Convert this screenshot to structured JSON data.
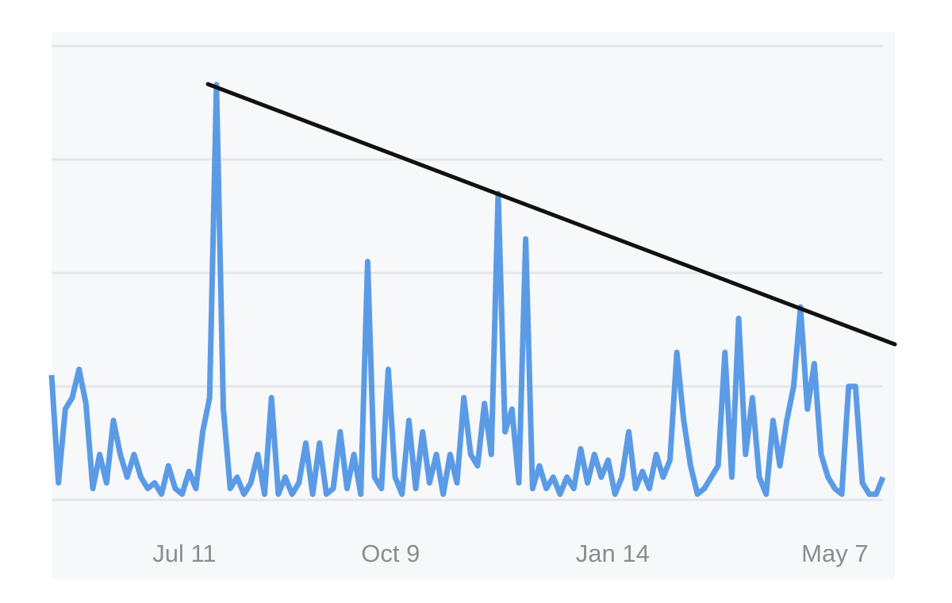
{
  "chart_data": {
    "type": "line",
    "x": [
      0,
      3,
      6,
      9,
      12,
      15,
      18,
      21,
      24,
      27,
      30,
      33,
      36,
      39,
      42,
      45,
      48,
      51,
      54,
      57,
      60,
      63,
      66,
      69,
      72,
      75,
      78,
      81,
      84,
      87,
      90,
      93,
      96,
      99,
      102,
      105,
      108,
      111,
      114,
      117,
      120,
      123,
      126,
      129,
      132,
      135,
      138,
      141,
      144,
      147,
      150,
      153,
      156,
      159,
      162,
      165,
      168,
      171,
      174,
      177,
      180,
      183,
      186,
      189,
      192,
      195,
      198,
      201,
      204,
      207,
      210,
      213,
      216,
      219,
      222,
      225,
      228,
      231,
      234,
      237,
      240,
      243,
      246,
      249,
      252,
      255,
      258,
      261,
      264,
      267,
      270,
      273,
      276,
      279,
      282,
      285,
      288,
      291,
      294,
      297,
      300,
      303,
      306,
      309,
      312,
      315,
      318,
      321,
      324,
      327,
      330,
      333,
      336,
      339,
      342,
      345,
      348,
      351,
      354,
      357,
      360,
      363
    ],
    "series": [
      {
        "color": "#5b9be6",
        "values": [
          1.1,
          0.15,
          0.8,
          0.9,
          1.15,
          0.85,
          0.1,
          0.4,
          0.15,
          0.7,
          0.4,
          0.2,
          0.4,
          0.2,
          0.1,
          0.15,
          0.05,
          0.3,
          0.1,
          0.05,
          0.25,
          0.1,
          0.6,
          0.9,
          3.66,
          0.8,
          0.1,
          0.2,
          0.05,
          0.15,
          0.4,
          0.05,
          0.9,
          0.05,
          0.2,
          0.05,
          0.15,
          0.5,
          0.05,
          0.5,
          0.05,
          0.1,
          0.6,
          0.1,
          0.4,
          0.05,
          2.1,
          0.2,
          0.1,
          1.15,
          0.2,
          0.05,
          0.7,
          0.1,
          0.6,
          0.15,
          0.4,
          0.05,
          0.4,
          0.15,
          0.9,
          0.4,
          0.3,
          0.85,
          0.4,
          2.7,
          0.6,
          0.8,
          0.15,
          2.3,
          0.1,
          0.3,
          0.1,
          0.2,
          0.05,
          0.2,
          0.1,
          0.45,
          0.15,
          0.4,
          0.2,
          0.35,
          0.05,
          0.2,
          0.6,
          0.1,
          0.25,
          0.1,
          0.4,
          0.2,
          0.35,
          1.3,
          0.7,
          0.3,
          0.05,
          0.1,
          0.2,
          0.3,
          1.3,
          0.2,
          1.6,
          0.4,
          0.9,
          0.2,
          0.05,
          0.7,
          0.3,
          0.7,
          1.0,
          1.7,
          0.8,
          1.2,
          0.4,
          0.2,
          0.1,
          0.05,
          1.0,
          1.0,
          0.15,
          0.05,
          0.05,
          0.2
        ]
      }
    ],
    "xlim": [
      0,
      363
    ],
    "xticks": [
      {
        "value": 58,
        "label": "Jul 11"
      },
      {
        "value": 148,
        "label": "Oct 9"
      },
      {
        "value": 245,
        "label": "Jan 14"
      },
      {
        "value": 342,
        "label": "May 7"
      }
    ],
    "ylim": [
      0,
      4
    ],
    "yticks": [
      0,
      1,
      2,
      3,
      4
    ],
    "grid": true
  }
}
